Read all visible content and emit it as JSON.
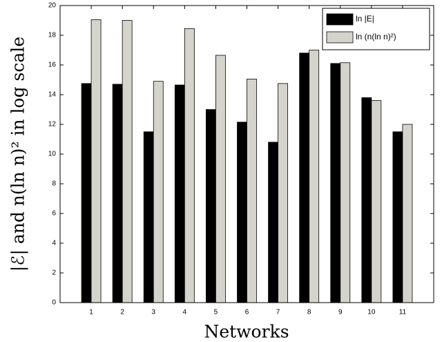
{
  "chart_data": {
    "type": "bar",
    "x_label": "Networks",
    "y_label": "|ℰ| and n(ln n)² in log scale",
    "x": [
      1,
      2,
      3,
      4,
      5,
      6,
      7,
      8,
      9,
      10,
      11
    ],
    "xlim": [
      0,
      12
    ],
    "xticks": [
      1,
      2,
      3,
      4,
      5,
      6,
      7,
      8,
      9,
      10,
      11
    ],
    "ylim": [
      0,
      20
    ],
    "yticks": [
      0,
      2,
      4,
      6,
      8,
      10,
      12,
      14,
      16,
      18,
      20
    ],
    "legend": "upper right",
    "series": [
      {
        "name": "ln |E|",
        "color": "#000000",
        "values": [
          14.75,
          14.7,
          11.5,
          14.65,
          13.0,
          12.15,
          10.8,
          16.8,
          16.1,
          13.8,
          11.5
        ]
      },
      {
        "name": "ln (n(ln n)²)",
        "color": "#d4d4cc",
        "values": [
          19.05,
          19.0,
          14.9,
          18.45,
          16.65,
          15.05,
          14.75,
          17.0,
          16.15,
          13.6,
          12.0
        ]
      }
    ]
  }
}
